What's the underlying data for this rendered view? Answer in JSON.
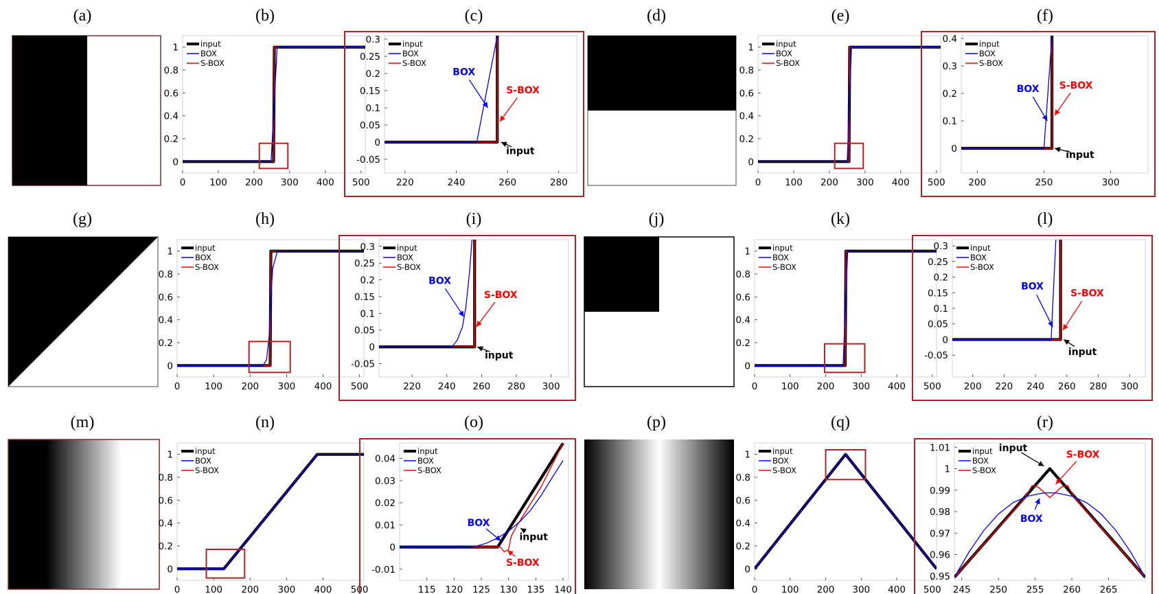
{
  "figure": {
    "panel_labels": [
      "(a)",
      "(b)",
      "(c)",
      "(d)",
      "(e)",
      "(f)",
      "(g)",
      "(h)",
      "(i)",
      "(j)",
      "(k)",
      "(l)",
      "(m)",
      "(n)",
      "(o)",
      "(p)",
      "(q)",
      "(r)"
    ]
  },
  "colors": {
    "input": "#000000",
    "box": "#0000ff",
    "sbox": "#ff0000",
    "highlight": "#b22222"
  },
  "legend": [
    "input",
    "BOX",
    "S-BOX"
  ],
  "annotations": {
    "box": "BOX",
    "sbox": "S-BOX",
    "input": "input"
  },
  "chart_data": [
    {
      "panel": "(b)",
      "type": "line",
      "xlim": [
        0,
        512
      ],
      "ylim": [
        -0.1,
        1.1
      ],
      "xticks": [
        0,
        100,
        200,
        300,
        400,
        500
      ],
      "yticks": [
        0,
        0.2,
        0.4,
        0.6,
        0.8,
        1
      ],
      "series": [
        {
          "name": "input",
          "x": [
            0,
            255,
            257,
            512
          ],
          "y": [
            0,
            0,
            1,
            1
          ]
        },
        {
          "name": "BOX",
          "x": [
            0,
            248,
            265,
            512
          ],
          "y": [
            0,
            0,
            1,
            1
          ]
        },
        {
          "name": "S-BOX",
          "x": [
            0,
            255,
            257,
            512
          ],
          "y": [
            0,
            0,
            1,
            1
          ]
        }
      ],
      "zoom_box": {
        "x": [
          215,
          295
        ],
        "y": [
          -0.06,
          0.16
        ]
      }
    },
    {
      "panel": "(c)",
      "type": "line",
      "xlim": [
        212,
        287
      ],
      "ylim": [
        -0.09,
        0.31
      ],
      "xticks": [
        220,
        240,
        260,
        280
      ],
      "yticks": [
        -0.05,
        0,
        0.05,
        0.1,
        0.15,
        0.2,
        0.25,
        0.3
      ],
      "series": [
        {
          "name": "input",
          "x": [
            212,
            256,
            256
          ],
          "y": [
            0,
            0,
            0.31
          ]
        },
        {
          "name": "BOX",
          "x": [
            212,
            248,
            256
          ],
          "y": [
            0,
            0,
            0.31
          ]
        },
        {
          "name": "S-BOX",
          "x": [
            212,
            256,
            256
          ],
          "y": [
            0,
            0,
            0.31
          ]
        }
      ],
      "annotations": [
        {
          "text": "BOX",
          "x": 243,
          "y": 0.195,
          "ax": 252.3,
          "ay": 0.1
        },
        {
          "text": "S-BOX",
          "x": 266,
          "y": 0.142,
          "ax": 257,
          "ay": 0.06
        },
        {
          "text": "input",
          "x": 265,
          "y": -0.035,
          "ax": 257.5,
          "ay": 0.0
        }
      ]
    },
    {
      "panel": "(e)",
      "type": "line",
      "xlim": [
        0,
        512
      ],
      "ylim": [
        -0.1,
        1.1
      ],
      "xticks": [
        0,
        100,
        200,
        300,
        400,
        500
      ],
      "yticks": [
        0,
        0.2,
        0.4,
        0.6,
        0.8,
        1
      ],
      "series": [
        {
          "name": "input",
          "x": [
            0,
            255,
            257,
            512
          ],
          "y": [
            0,
            0,
            1,
            1
          ]
        },
        {
          "name": "BOX",
          "x": [
            0,
            250,
            262,
            512
          ],
          "y": [
            0,
            0,
            1,
            1
          ]
        },
        {
          "name": "S-BOX",
          "x": [
            0,
            255,
            257,
            512
          ],
          "y": [
            0,
            0,
            1,
            1
          ]
        }
      ],
      "zoom_box": {
        "x": [
          215,
          295
        ],
        "y": [
          -0.06,
          0.16
        ]
      }
    },
    {
      "panel": "(f)",
      "type": "line",
      "xlim": [
        188,
        328
      ],
      "ylim": [
        -0.09,
        0.41
      ],
      "xticks": [
        200,
        250,
        300
      ],
      "yticks": [
        0,
        0.1,
        0.2,
        0.3,
        0.4
      ],
      "series": [
        {
          "name": "input",
          "x": [
            188,
            256,
            256
          ],
          "y": [
            0,
            0,
            0.41
          ]
        },
        {
          "name": "BOX",
          "x": [
            188,
            250,
            256
          ],
          "y": [
            0,
            0,
            0.41
          ]
        },
        {
          "name": "S-BOX",
          "x": [
            188,
            256,
            256
          ],
          "y": [
            0,
            0,
            0.41
          ]
        }
      ],
      "annotations": [
        {
          "text": "BOX",
          "x": 238,
          "y": 0.205,
          "ax": 252.5,
          "ay": 0.1
        },
        {
          "text": "S-BOX",
          "x": 274,
          "y": 0.218,
          "ax": 258,
          "ay": 0.12
        },
        {
          "text": "input",
          "x": 277,
          "y": -0.035,
          "ax": 258,
          "ay": 0.0
        }
      ]
    },
    {
      "panel": "(h)",
      "type": "line",
      "xlim": [
        0,
        512
      ],
      "ylim": [
        -0.1,
        1.1
      ],
      "xticks": [
        0,
        100,
        200,
        300,
        400,
        500
      ],
      "yticks": [
        0,
        0.2,
        0.4,
        0.6,
        0.8,
        1
      ],
      "series": [
        {
          "name": "input",
          "x": [
            0,
            255,
            257,
            512
          ],
          "y": [
            0,
            0,
            1,
            1
          ]
        },
        {
          "name": "BOX",
          "x": [
            0,
            235,
            245,
            252,
            257,
            262,
            275,
            512
          ],
          "y": [
            0,
            0,
            0.05,
            0.25,
            0.6,
            0.85,
            1,
            1
          ]
        },
        {
          "name": "S-BOX",
          "x": [
            0,
            255,
            257,
            512
          ],
          "y": [
            0,
            0,
            1,
            1
          ]
        }
      ],
      "zoom_box": {
        "x": [
          197,
          310
        ],
        "y": [
          -0.06,
          0.21
        ]
      }
    },
    {
      "panel": "(i)",
      "type": "line",
      "xlim": [
        201,
        310
      ],
      "ylim": [
        -0.09,
        0.32
      ],
      "xticks": [
        220,
        240,
        260,
        280,
        300
      ],
      "yticks": [
        -0.05,
        0,
        0.05,
        0.1,
        0.15,
        0.2,
        0.25,
        0.3
      ],
      "series": [
        {
          "name": "input",
          "x": [
            201,
            256,
            256
          ],
          "y": [
            0,
            0,
            0.32
          ]
        },
        {
          "name": "BOX",
          "x": [
            201,
            243,
            246,
            249,
            251,
            253,
            254.5
          ],
          "y": [
            0,
            0,
            0.02,
            0.06,
            0.12,
            0.22,
            0.32
          ]
        },
        {
          "name": "S-BOX",
          "x": [
            201,
            256,
            256
          ],
          "y": [
            0,
            0,
            0.32
          ]
        }
      ],
      "annotations": [
        {
          "text": "BOX",
          "x": 236,
          "y": 0.188,
          "ax": 249.8,
          "ay": 0.09
        },
        {
          "text": "S-BOX",
          "x": 271,
          "y": 0.146,
          "ax": 257,
          "ay": 0.06
        },
        {
          "text": "input",
          "x": 270,
          "y": -0.035,
          "ax": 257.5,
          "ay": 0.0
        }
      ]
    },
    {
      "panel": "(k)",
      "type": "line",
      "xlim": [
        0,
        512
      ],
      "ylim": [
        -0.1,
        1.1
      ],
      "xticks": [
        0,
        100,
        200,
        300,
        400,
        500
      ],
      "yticks": [
        0,
        0.2,
        0.4,
        0.6,
        0.8,
        1
      ],
      "series": [
        {
          "name": "input",
          "x": [
            0,
            255,
            257,
            512
          ],
          "y": [
            0,
            0,
            1,
            1
          ]
        },
        {
          "name": "BOX",
          "x": [
            0,
            249,
            262,
            512
          ],
          "y": [
            0,
            0,
            1,
            1
          ]
        },
        {
          "name": "S-BOX",
          "x": [
            0,
            255,
            257,
            512
          ],
          "y": [
            0,
            0,
            1,
            1
          ]
        }
      ],
      "zoom_box": {
        "x": [
          197,
          310
        ],
        "y": [
          -0.06,
          0.19
        ]
      }
    },
    {
      "panel": "(l)",
      "type": "line",
      "xlim": [
        187,
        310
      ],
      "ylim": [
        -0.12,
        0.32
      ],
      "xticks": [
        200,
        220,
        240,
        260,
        280,
        300
      ],
      "yticks": [
        -0.05,
        0,
        0.05,
        0.1,
        0.15,
        0.2,
        0.25,
        0.3
      ],
      "series": [
        {
          "name": "input",
          "x": [
            187,
            256,
            256
          ],
          "y": [
            0,
            0,
            0.32
          ]
        },
        {
          "name": "BOX",
          "x": [
            187,
            250,
            253
          ],
          "y": [
            0,
            0,
            0.32
          ]
        },
        {
          "name": "S-BOX",
          "x": [
            187,
            256,
            256
          ],
          "y": [
            0,
            0,
            0.32
          ]
        }
      ],
      "annotations": [
        {
          "text": "BOX",
          "x": 238,
          "y": 0.16,
          "ax": 251,
          "ay": 0.04
        },
        {
          "text": "S-BOX",
          "x": 273,
          "y": 0.138,
          "ax": 257.5,
          "ay": 0.03
        },
        {
          "text": "input",
          "x": 270,
          "y": -0.05,
          "ax": 258,
          "ay": 0.0
        }
      ]
    },
    {
      "panel": "(n)",
      "type": "line",
      "xlim": [
        0,
        512
      ],
      "ylim": [
        -0.1,
        1.1
      ],
      "xticks": [
        0,
        100,
        200,
        300,
        400,
        500
      ],
      "yticks": [
        0,
        0.2,
        0.4,
        0.6,
        0.8,
        1
      ],
      "series": [
        {
          "name": "input",
          "x": [
            0,
            128,
            384,
            512
          ],
          "y": [
            0,
            0,
            1,
            1
          ]
        },
        {
          "name": "BOX",
          "x": [
            0,
            128,
            384,
            512
          ],
          "y": [
            0,
            0,
            1,
            1
          ]
        },
        {
          "name": "S-BOX",
          "x": [
            0,
            128,
            384,
            512
          ],
          "y": [
            0,
            0,
            1,
            1
          ]
        }
      ],
      "zoom_box": {
        "x": [
          80,
          185
        ],
        "y": [
          -0.08,
          0.17
        ]
      }
    },
    {
      "panel": "(o)",
      "type": "line",
      "xlim": [
        110,
        141
      ],
      "ylim": [
        -0.015,
        0.047
      ],
      "xticks": [
        115,
        120,
        125,
        130,
        135,
        140
      ],
      "yticks": [
        -0.01,
        0,
        0.01,
        0.02,
        0.03,
        0.04
      ],
      "series": [
        {
          "name": "input",
          "x": [
            110,
            128,
            140
          ],
          "y": [
            0,
            0,
            0.0469
          ]
        },
        {
          "name": "BOX",
          "x": [
            110,
            122,
            124,
            126,
            128,
            130,
            132,
            134,
            136,
            138,
            140
          ],
          "y": [
            0,
            0,
            0.0003,
            0.0018,
            0.0041,
            0.0072,
            0.0113,
            0.0165,
            0.0234,
            0.0313,
            0.0391
          ]
        },
        {
          "name": "S-BOX",
          "x": [
            110,
            128.5,
            129.2,
            130,
            130.5,
            131.5,
            133,
            136,
            140
          ],
          "y": [
            0,
            0,
            -0.0022,
            -0.001,
            0.005,
            0.0095,
            0.0155,
            0.0273,
            0.0469
          ]
        }
      ],
      "annotations": [
        {
          "text": "BOX",
          "x": 124.5,
          "y": 0.0095,
          "ax": 128.6,
          "ay": 0.0028
        },
        {
          "text": "input",
          "x": 134.6,
          "y": 0.0032,
          "ax": 132.2,
          "ay": 0.0085
        },
        {
          "text": "S-BOX",
          "x": 132.6,
          "y": -0.0085,
          "ax": 129.8,
          "ay": -0.0015
        }
      ]
    },
    {
      "panel": "(q)",
      "type": "line",
      "xlim": [
        0,
        512
      ],
      "ylim": [
        -0.1,
        1.1
      ],
      "xticks": [
        0,
        100,
        200,
        300,
        400,
        500
      ],
      "yticks": [
        0,
        0.2,
        0.4,
        0.6,
        0.8,
        1
      ],
      "series": [
        {
          "name": "input",
          "x": [
            0,
            256,
            512
          ],
          "y": [
            0,
            1,
            1e-09
          ]
        },
        {
          "name": "BOX",
          "x": [
            0,
            256,
            512
          ],
          "y": [
            0,
            1,
            0
          ]
        },
        {
          "name": "S-BOX",
          "x": [
            0,
            256,
            512
          ],
          "y": [
            0,
            1,
            0
          ]
        }
      ],
      "zoom_box": {
        "x": [
          200,
          312
        ],
        "y": [
          0.78,
          1.04
        ]
      }
    },
    {
      "panel": "(r)",
      "type": "line",
      "xlim": [
        244,
        270
      ],
      "ylim": [
        0.948,
        1.012
      ],
      "xticks": [
        245,
        250,
        255,
        260,
        265
      ],
      "yticks": [
        0.95,
        0.96,
        0.97,
        0.98,
        0.99,
        1,
        1.01
      ],
      "series": [
        {
          "name": "input",
          "x": [
            244,
            257,
            270
          ],
          "y": [
            0.9494,
            1,
            0.9494
          ]
        },
        {
          "name": "BOX",
          "x": [
            244,
            246,
            248,
            250,
            252,
            254,
            256,
            257,
            258,
            260,
            262,
            264,
            266,
            268,
            270
          ],
          "y": [
            0.9494,
            0.9612,
            0.9712,
            0.9789,
            0.9842,
            0.9872,
            0.9886,
            0.9888,
            0.9886,
            0.9872,
            0.9842,
            0.9789,
            0.9712,
            0.9612,
            0.9494
          ]
        },
        {
          "name": "S-BOX",
          "x": [
            244,
            253.5,
            254.6,
            255.4,
            257,
            258.6,
            259.4,
            260.5,
            270
          ],
          "y": [
            0.9494,
            0.986,
            0.9922,
            0.9915,
            0.9865,
            0.9915,
            0.9922,
            0.986,
            0.9494
          ]
        }
      ],
      "annotations": [
        {
          "text": "input",
          "x": 252,
          "y": 1.0082,
          "ax": 256.2,
          "ay": 1.0012
        },
        {
          "text": "S-BOX",
          "x": 261.5,
          "y": 1.0052,
          "ax": 257.8,
          "ay": 0.9928
        },
        {
          "text": "BOX",
          "x": 254.5,
          "y": 0.9752,
          "ax": 255.6,
          "ay": 0.9862
        }
      ]
    }
  ]
}
